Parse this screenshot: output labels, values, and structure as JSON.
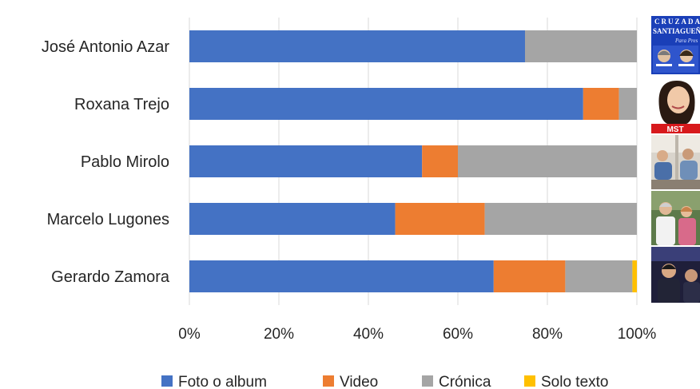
{
  "chart_data": {
    "type": "bar",
    "orientation": "horizontal",
    "stacked": "percent",
    "categories": [
      "José Antonio Azar",
      "Roxana Trejo",
      "Pablo Mirolo",
      "Marcelo Lugones",
      "Gerardo Zamora"
    ],
    "series": [
      {
        "name": "Foto o album",
        "color": "#4472C4",
        "values": [
          75,
          88,
          52,
          46,
          68
        ]
      },
      {
        "name": "Video",
        "color": "#ED7D31",
        "values": [
          0,
          8,
          8,
          20,
          16
        ]
      },
      {
        "name": "Crónica",
        "color": "#A5A5A5",
        "values": [
          25,
          4,
          40,
          34,
          15
        ]
      },
      {
        "name": "Solo texto",
        "color": "#FFC000",
        "values": [
          0,
          0,
          0,
          0,
          1
        ]
      }
    ],
    "xlim": [
      0,
      100
    ],
    "x_ticks": [
      "0%",
      "20%",
      "40%",
      "60%",
      "80%",
      "100%"
    ],
    "grid": true,
    "legend_position": "bottom",
    "title": "",
    "xlabel": "",
    "ylabel": ""
  },
  "thumbnails": {
    "azar_poster": {
      "line1": "CRUZADA",
      "line2": "SANTIAGUEÑA",
      "line3": "Para Pres"
    },
    "trejo_banner": "MST"
  }
}
